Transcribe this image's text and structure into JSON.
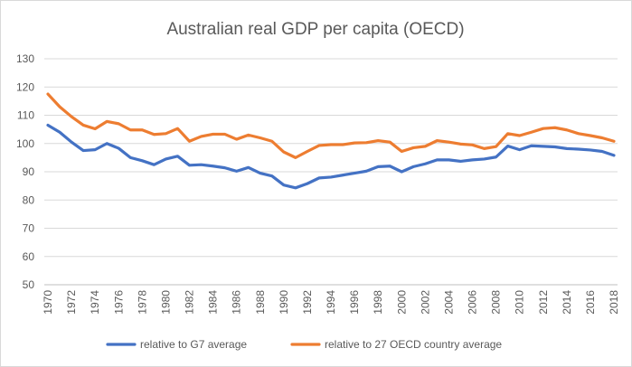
{
  "chart_data": {
    "type": "line",
    "title": "Australian real GDP per capita (OECD)",
    "xlabel": "",
    "ylabel": "",
    "ylim": [
      50,
      130
    ],
    "yticks": [
      50,
      60,
      70,
      80,
      90,
      100,
      110,
      120,
      130
    ],
    "x": [
      1970,
      1971,
      1972,
      1973,
      1974,
      1975,
      1976,
      1977,
      1978,
      1979,
      1980,
      1981,
      1982,
      1983,
      1984,
      1985,
      1986,
      1987,
      1988,
      1989,
      1990,
      1991,
      1992,
      1993,
      1994,
      1995,
      1996,
      1997,
      1998,
      1999,
      2000,
      2001,
      2002,
      2003,
      2004,
      2005,
      2006,
      2007,
      2008,
      2009,
      2010,
      2011,
      2012,
      2013,
      2014,
      2015,
      2016,
      2017,
      2018
    ],
    "xtick_labels": [
      "1970",
      "1972",
      "1974",
      "1976",
      "1978",
      "1980",
      "1982",
      "1984",
      "1986",
      "1988",
      "1990",
      "1992",
      "1994",
      "1996",
      "1998",
      "2000",
      "2002",
      "2004",
      "2006",
      "2008",
      "2010",
      "2012",
      "2014",
      "2016",
      "2018"
    ],
    "grid": true,
    "legend_position": "bottom",
    "series": [
      {
        "name": "relative to G7 average",
        "color": "#4472C4",
        "values": [
          106.5,
          104.0,
          100.5,
          97.5,
          97.8,
          100.0,
          98.3,
          95.0,
          93.9,
          92.5,
          94.5,
          95.5,
          92.3,
          92.5,
          92.0,
          91.4,
          90.2,
          91.5,
          89.5,
          88.5,
          85.3,
          84.3,
          85.8,
          87.8,
          88.1,
          88.8,
          89.5,
          90.2,
          91.8,
          92.0,
          90.0,
          91.8,
          92.8,
          94.2,
          94.2,
          93.7,
          94.2,
          94.5,
          95.2,
          99.1,
          97.8,
          99.2,
          99.0,
          98.8,
          98.2,
          98.0,
          97.7,
          97.2,
          95.8
        ]
      },
      {
        "name": "relative to 27 OECD country average",
        "color": "#ED7D31",
        "values": [
          117.5,
          113.0,
          109.5,
          106.5,
          105.2,
          107.8,
          107.0,
          104.8,
          104.8,
          103.2,
          103.5,
          105.3,
          100.8,
          102.5,
          103.3,
          103.3,
          101.5,
          103.0,
          102.0,
          100.8,
          97.0,
          95.0,
          97.2,
          99.3,
          99.6,
          99.6,
          100.2,
          100.3,
          101.0,
          100.5,
          97.2,
          98.5,
          99.0,
          101.0,
          100.5,
          99.8,
          99.5,
          98.2,
          98.9,
          103.5,
          102.8,
          104.0,
          105.3,
          105.6,
          104.8,
          103.5,
          102.8,
          102.0,
          100.8
        ]
      }
    ]
  }
}
